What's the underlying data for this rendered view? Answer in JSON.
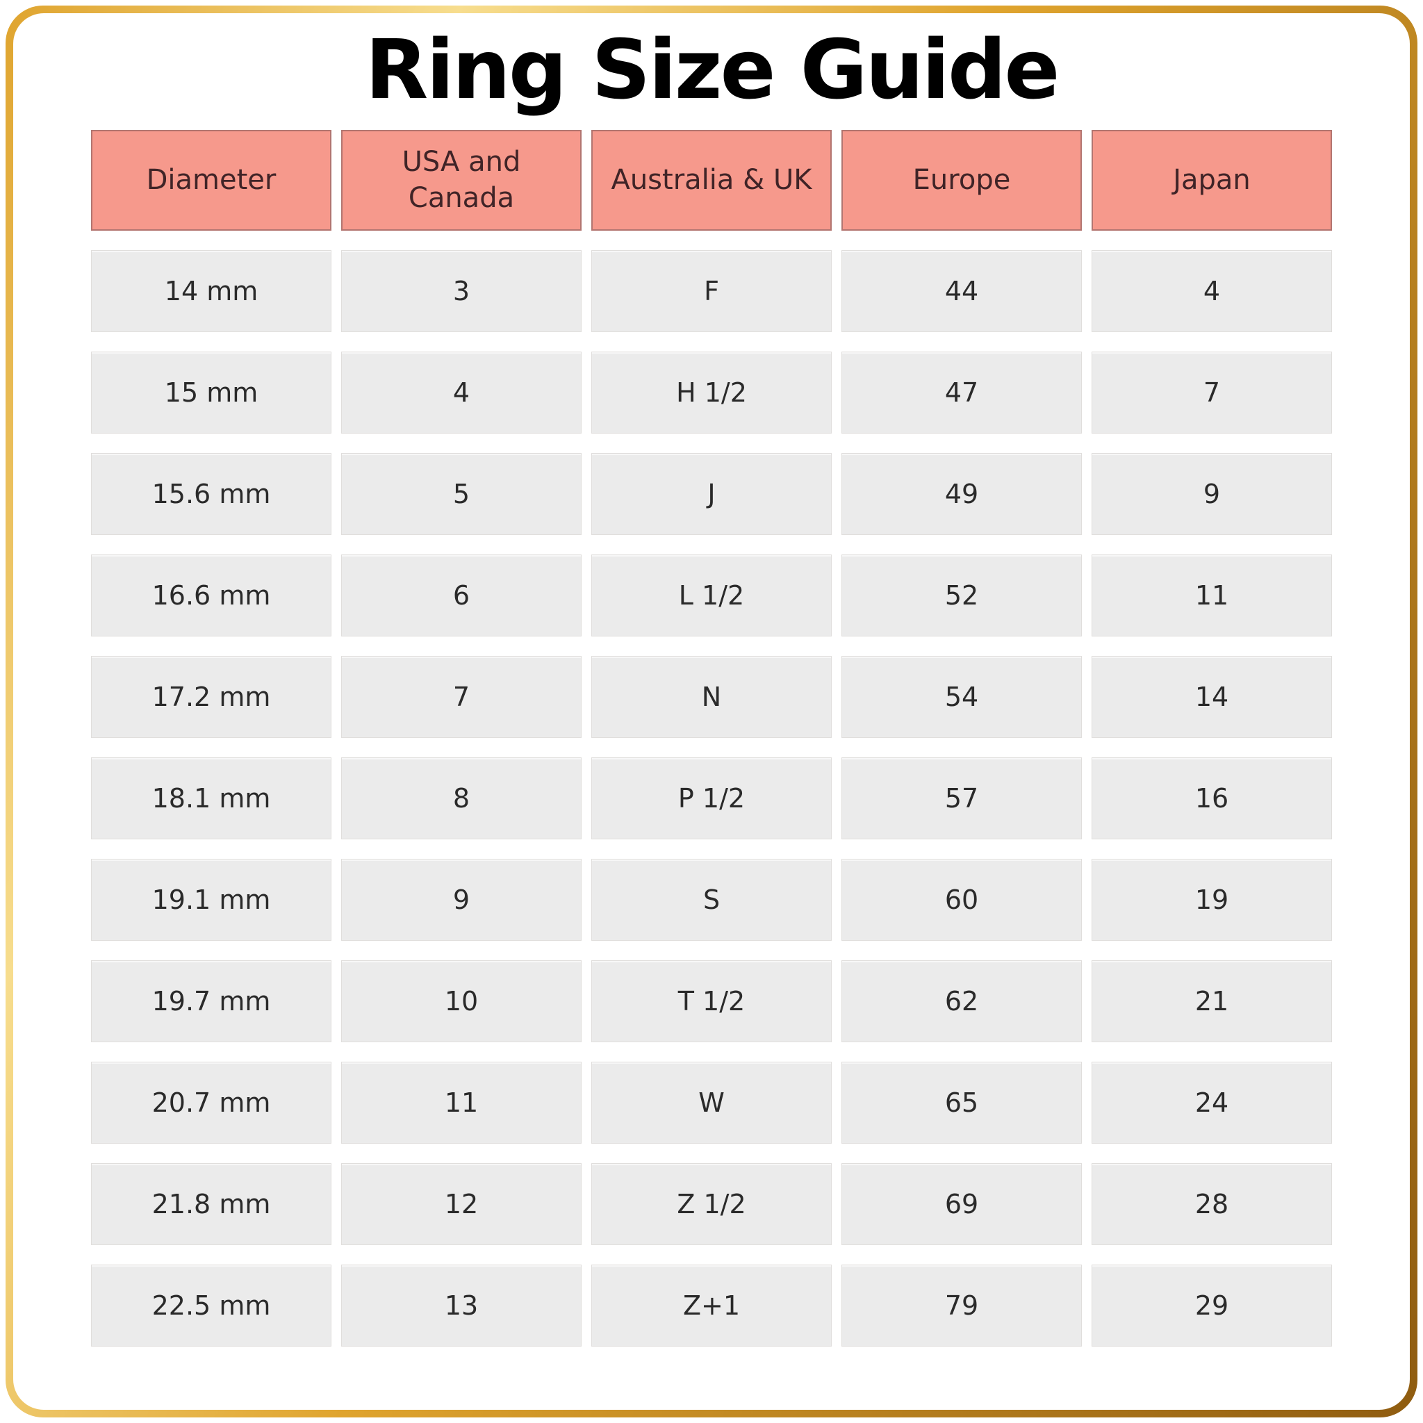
{
  "title": "Ring Size Guide",
  "chart_data": {
    "type": "table",
    "title": "Ring Size Guide",
    "columns": [
      "Diameter",
      "USA and\nCanada",
      "Australia & UK",
      "Europe",
      "Japan"
    ],
    "rows": [
      [
        "14 mm",
        "3",
        "F",
        "44",
        "4"
      ],
      [
        "15 mm",
        "4",
        "H 1/2",
        "47",
        "7"
      ],
      [
        "15.6 mm",
        "5",
        "J",
        "49",
        "9"
      ],
      [
        "16.6 mm",
        "6",
        "L 1/2",
        "52",
        "11"
      ],
      [
        "17.2 mm",
        "7",
        "N",
        "54",
        "14"
      ],
      [
        "18.1 mm",
        "8",
        "P 1/2",
        "57",
        "16"
      ],
      [
        "19.1 mm",
        "9",
        "S",
        "60",
        "19"
      ],
      [
        "19.7 mm",
        "10",
        "T 1/2",
        "62",
        "21"
      ],
      [
        "20.7 mm",
        "11",
        "W",
        "65",
        "24"
      ],
      [
        "21.8 mm",
        "12",
        "Z 1/2",
        "69",
        "28"
      ],
      [
        "22.5 mm",
        "13",
        "Z+1",
        "79",
        "29"
      ]
    ]
  },
  "colors": {
    "header_bg": "#f6998c",
    "header_text": "#402427",
    "cell_bg": "#ebebeb",
    "cell_text": "#2a2a2a",
    "title_text": "#000000",
    "gold_light": "#f7dd8e",
    "gold_mid": "#dfa42e",
    "gold_dark": "#8f5c10"
  }
}
